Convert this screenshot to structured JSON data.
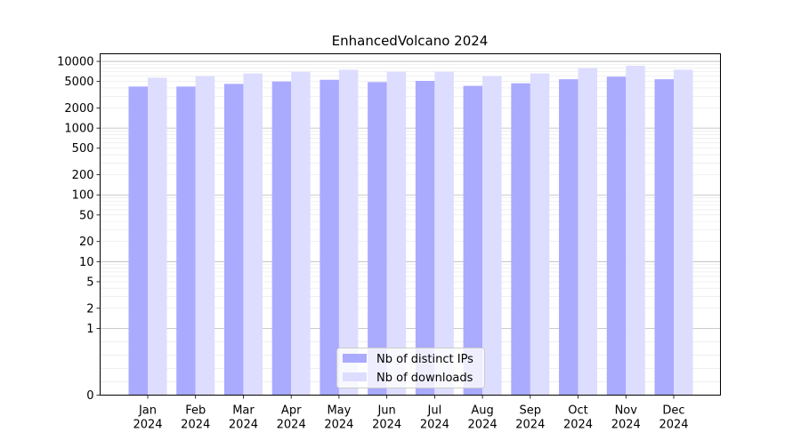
{
  "chart_data": {
    "type": "bar",
    "title": "EnhancedVolcano 2024",
    "xlabel": "",
    "ylabel": "",
    "yscale": "symlog",
    "ylim": [
      0,
      13000
    ],
    "ytick_labels": [
      "0",
      "1",
      "2",
      "5",
      "10",
      "20",
      "50",
      "100",
      "200",
      "500",
      "1000",
      "2000",
      "5000",
      "10000"
    ],
    "categories": [
      {
        "month": "Jan",
        "year": "2024"
      },
      {
        "month": "Feb",
        "year": "2024"
      },
      {
        "month": "Mar",
        "year": "2024"
      },
      {
        "month": "Apr",
        "year": "2024"
      },
      {
        "month": "May",
        "year": "2024"
      },
      {
        "month": "Jun",
        "year": "2024"
      },
      {
        "month": "Jul",
        "year": "2024"
      },
      {
        "month": "Aug",
        "year": "2024"
      },
      {
        "month": "Sep",
        "year": "2024"
      },
      {
        "month": "Oct",
        "year": "2024"
      },
      {
        "month": "Nov",
        "year": "2024"
      },
      {
        "month": "Dec",
        "year": "2024"
      }
    ],
    "series": [
      {
        "name": "Nb of distinct IPs",
        "color": "#aaaaff",
        "values": [
          4200,
          4200,
          4600,
          5000,
          5300,
          4900,
          5100,
          4300,
          4700,
          5400,
          5900,
          5400
        ]
      },
      {
        "name": "Nb of downloads",
        "color": "#ddddff",
        "values": [
          5700,
          6000,
          6600,
          7000,
          7500,
          7000,
          7000,
          6000,
          6600,
          7900,
          8600,
          7500
        ]
      }
    ],
    "grid": true,
    "legend_position": "bottom-center"
  }
}
